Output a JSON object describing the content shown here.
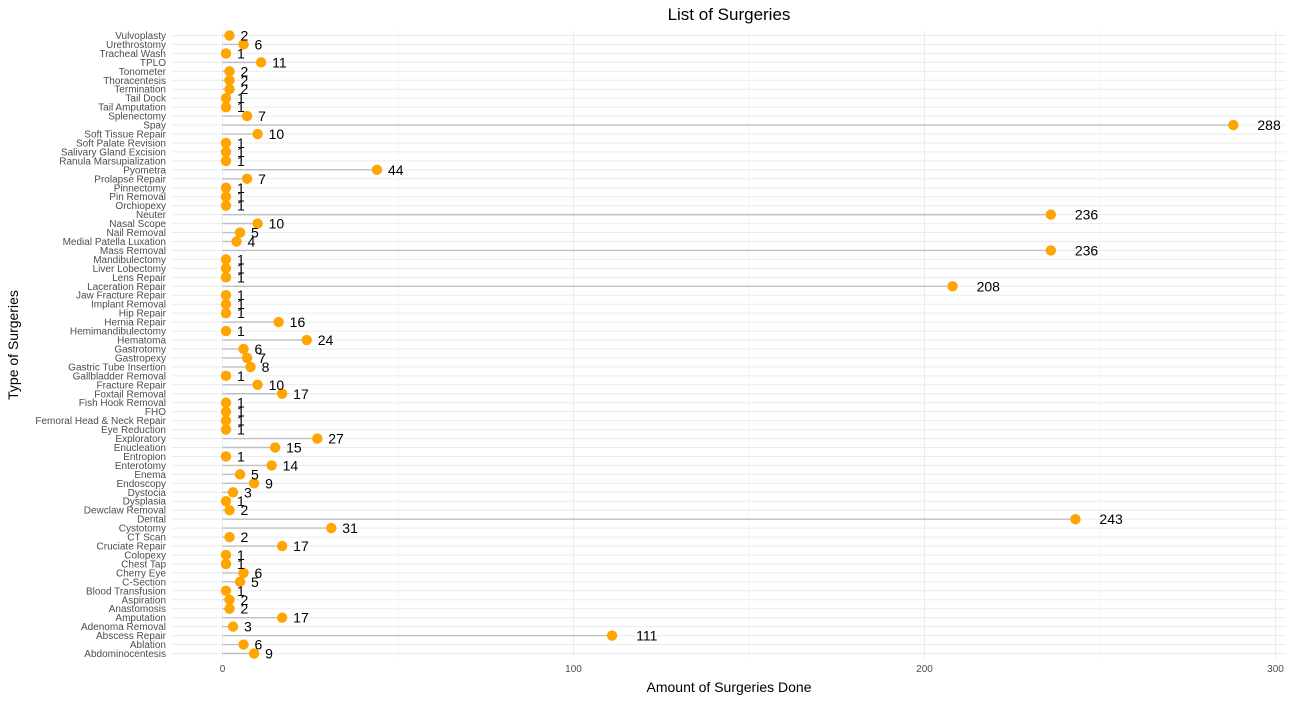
{
  "chart_data": {
    "type": "lollipop",
    "title": "List of Surgeries",
    "xlabel": "Amount of Surgeries Done",
    "ylabel": "Type of Surgeries",
    "xlim": [
      -15,
      300
    ],
    "xticks": [
      0,
      100,
      200,
      300
    ],
    "grid": true,
    "point_color": "#FFA500",
    "stem_color": "#bfbfbf",
    "categories": [
      "Abdominocentesis",
      "Ablation",
      "Abscess Repair",
      "Adenoma Removal",
      "Amputation",
      "Anastomosis",
      "Aspiration",
      "Blood Transfusion",
      "C-Section",
      "Cherry Eye",
      "Chest Tap",
      "Colopexy",
      "Cruciate Repair",
      "CT Scan",
      "Cystotomy",
      "Dental",
      "Dewclaw Removal",
      "Dysplasia",
      "Dystocia",
      "Endoscopy",
      "Enema",
      "Enterotomy",
      "Entropion",
      "Enucleation",
      "Exploratory",
      "Eye Reduction",
      "Femoral Head & Neck Repair",
      "FHO",
      "Fish Hook Removal",
      "Foxtail Removal",
      "Fracture Repair",
      "Gallbladder Removal",
      "Gastric Tube Insertion",
      "Gastropexy",
      "Gastrotomy",
      "Hematoma",
      "Hemimandibulectomy",
      "Hernia Repair",
      "Hip Repair",
      "Implant Removal",
      "Jaw Fracture Repair",
      "Laceration Repair",
      "Lens Repair",
      "Liver Lobectomy",
      "Mandibulectomy",
      "Mass Removal",
      "Medial Patella Luxation",
      "Nail Removal",
      "Nasal Scope",
      "Neuter",
      "Orchiopexy",
      "Pin Removal",
      "Pinnectomy",
      "Prolapse Repair",
      "Pyometra",
      "Ranula Marsupialization",
      "Salivary Gland Excision",
      "Soft Palate Revision",
      "Soft Tissue Repair",
      "Spay",
      "Splenectomy",
      "Tail Amputation",
      "Tail Dock",
      "Termination",
      "Thoracentesis",
      "Tonometer",
      "TPLO",
      "Tracheal Wash",
      "Urethrostomy",
      "Vulvoplasty"
    ],
    "values": [
      9,
      6,
      111,
      3,
      17,
      2,
      2,
      1,
      5,
      6,
      1,
      1,
      17,
      2,
      31,
      243,
      2,
      1,
      3,
      9,
      5,
      14,
      1,
      15,
      27,
      1,
      1,
      1,
      1,
      17,
      10,
      1,
      8,
      7,
      6,
      24,
      1,
      16,
      1,
      1,
      1,
      208,
      1,
      1,
      1,
      236,
      4,
      5,
      10,
      236,
      1,
      1,
      1,
      7,
      44,
      1,
      1,
      1,
      10,
      288,
      7,
      1,
      1,
      2,
      2,
      2,
      11,
      1,
      6,
      2
    ]
  }
}
